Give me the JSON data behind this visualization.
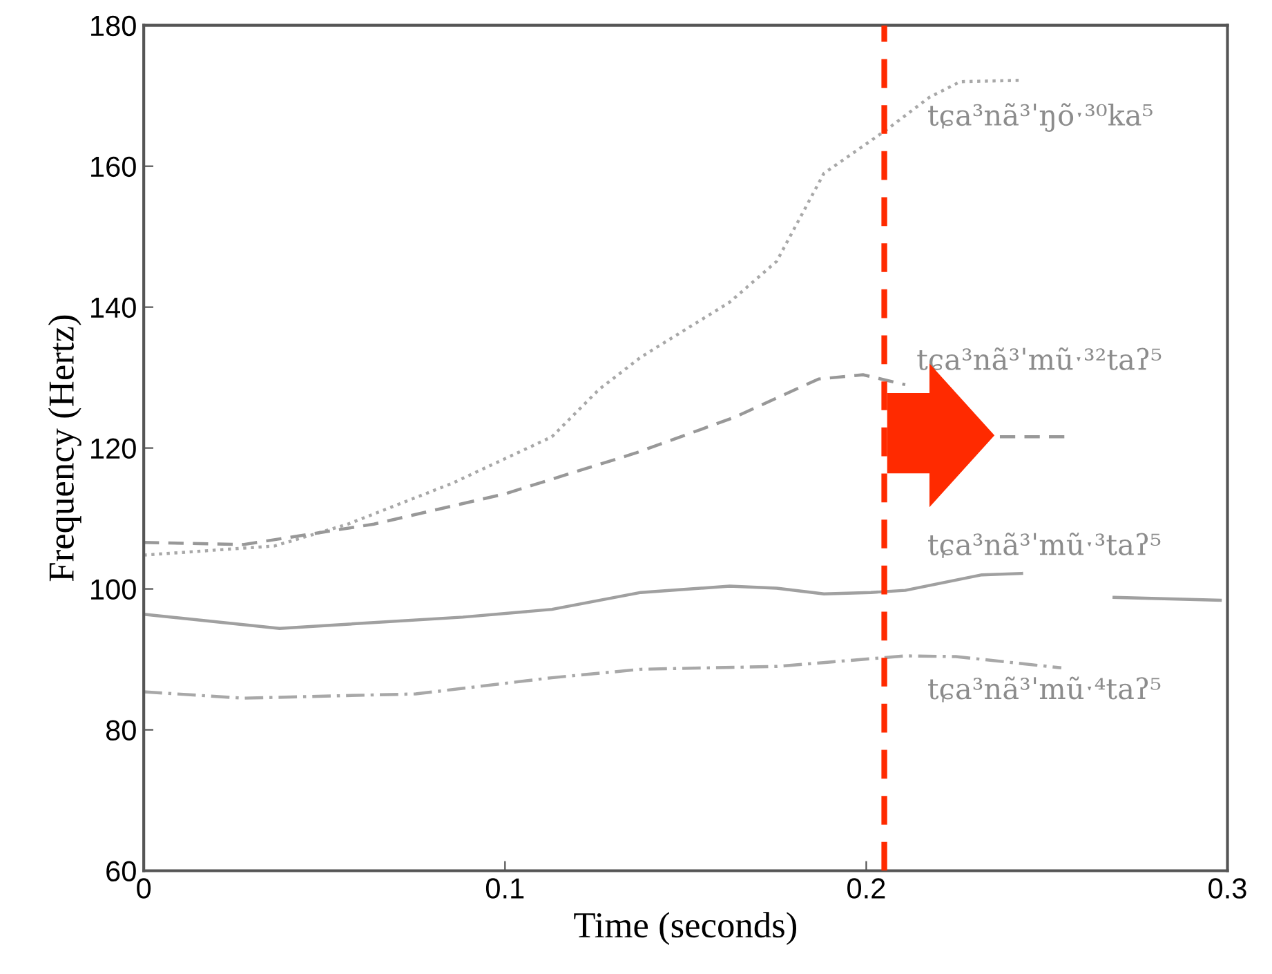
{
  "chart_data": {
    "type": "line",
    "xlabel": "Time (seconds)",
    "ylabel": "Frequency (Hertz)",
    "xlim": [
      0,
      0.3
    ],
    "xticks": [
      0,
      0.1,
      0.2,
      0.3
    ],
    "ylim": [
      60,
      180
    ],
    "yticks": [
      60,
      80,
      100,
      120,
      140,
      160,
      180
    ],
    "grid": false,
    "series": [
      {
        "color": "#a8a8a8",
        "line_style": "dotted",
        "x": [
          0,
          0.0362,
          0.0565,
          0.0854,
          0.113,
          0.126,
          0.1376,
          0.1622,
          0.1752,
          0.1883,
          0.2057,
          0.2175,
          0.226,
          0.243
        ],
        "values": [
          104.8,
          106.1,
          109.2,
          115.0,
          121.6,
          128.3,
          132.9,
          140.7,
          146.5,
          159.0,
          165.2,
          169.8,
          172.0,
          172.2
        ]
      },
      {
        "color": "#989898",
        "line_style": "dashed",
        "x": [
          0,
          0.0275,
          0.0376,
          0.0637,
          0.1,
          0.1362,
          0.1637,
          0.1868,
          0.1991,
          0.2108,
          0.225,
          0.237,
          0.256
        ],
        "values": [
          106.6,
          106.3,
          107.1,
          109.2,
          113.5,
          119.3,
          124.4,
          129.8,
          130.4,
          129.0,
          null,
          121.6,
          121.6
        ]
      },
      {
        "color": "#a0a0a0",
        "line_style": "solid",
        "x": [
          0,
          0.0376,
          0.0883,
          0.113,
          0.1376,
          0.1622,
          0.1752,
          0.1883,
          0.2013,
          0.2108,
          0.232,
          0.243,
          0.255,
          0.2686,
          0.298
        ],
        "values": [
          96.4,
          94.4,
          96.0,
          97.1,
          99.5,
          100.4,
          100.1,
          99.3,
          99.5,
          99.8,
          102.0,
          102.2,
          null,
          98.8,
          98.4
        ]
      },
      {
        "color": "#a8a8a8",
        "line_style": "dashdot",
        "x": [
          0,
          0.0275,
          0.0753,
          0.113,
          0.1376,
          0.1752,
          0.2108,
          0.2248,
          0.254
        ],
        "values": [
          85.4,
          84.5,
          85.1,
          87.4,
          88.6,
          89.0,
          90.5,
          90.4,
          88.8
        ]
      }
    ],
    "ref_lines": [
      {
        "axis": "x",
        "value": 0.205,
        "color": "#ff2a00",
        "line_style": "dashed"
      }
    ],
    "annotations": [
      "tɕa³nã³ˈŋõˑ³⁰ka⁵",
      "tɕa³nã³ˈmũˑ³²taʔ⁵",
      "tɕa³nã³ˈmũˑ³taʔ⁵",
      "tɕa³nã³ˈmũˑ⁴taʔ⁵"
    ]
  }
}
